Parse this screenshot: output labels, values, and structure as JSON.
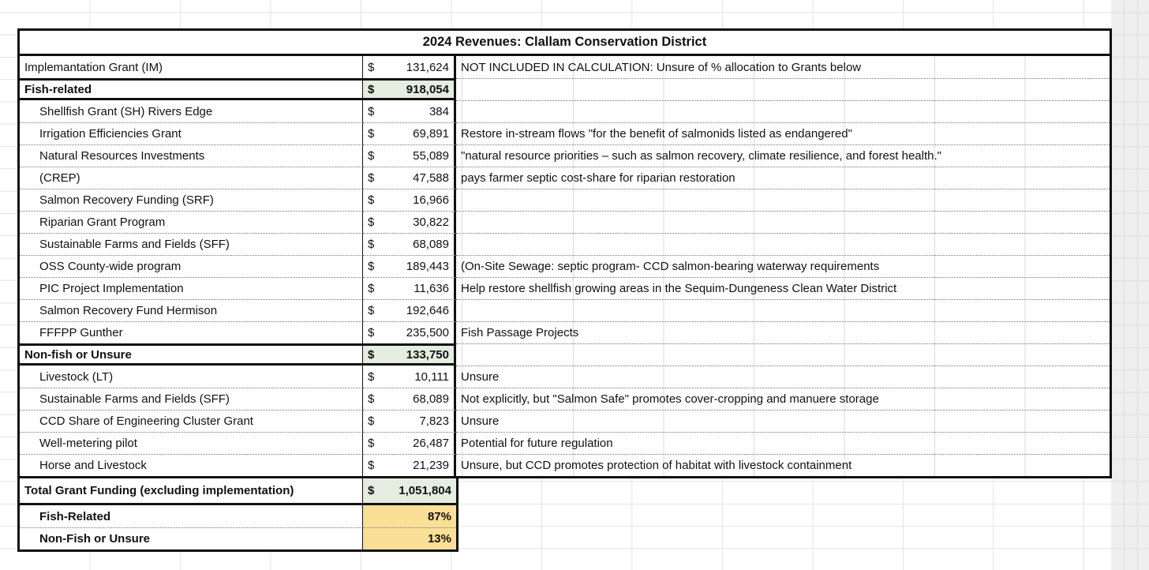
{
  "sheet": {
    "title": "2024 Revenues: Clallam Conservation District",
    "colors": {
      "section_total_fill": "#e4ede0",
      "percent_fill": "#fadf96",
      "table_border": "#111111"
    },
    "rows": [
      {
        "kind": "item",
        "indent": 0,
        "label": "Implemantation Grant (IM)",
        "cur": "$",
        "val": "131,624",
        "fill": "",
        "note": "NOT INCLUDED IN CALCULATION: Unsure of % allocation to Grants below"
      },
      {
        "kind": "section",
        "indent": 0,
        "label": "Fish-related",
        "cur": "$",
        "val": "918,054",
        "fill": "green",
        "note": ""
      },
      {
        "kind": "item",
        "indent": 1,
        "label": "Shellfish Grant (SH) Rivers Edge",
        "cur": "$",
        "val": "384",
        "fill": "",
        "note": ""
      },
      {
        "kind": "item",
        "indent": 1,
        "label": "Irrigation Efficiencies Grant",
        "cur": "$",
        "val": "69,891",
        "fill": "",
        "note": "Restore in-stream flows \"for the benefit of salmonids listed as endangered\""
      },
      {
        "kind": "item",
        "indent": 1,
        "label": "Natural Resources Investments",
        "cur": "$",
        "val": "55,089",
        "fill": "",
        "note": "\"natural resource priorities – such as salmon recovery, climate resilience, and forest health.\""
      },
      {
        "kind": "item",
        "indent": 1,
        "label": "(CREP)",
        "cur": "$",
        "val": "47,588",
        "fill": "",
        "note": "pays farmer septic cost-share for riparian restoration"
      },
      {
        "kind": "item",
        "indent": 1,
        "label": "Salmon Recovery Funding (SRF)",
        "cur": "$",
        "val": "16,966",
        "fill": "",
        "note": ""
      },
      {
        "kind": "item",
        "indent": 1,
        "label": "Riparian Grant Program",
        "cur": "$",
        "val": "30,822",
        "fill": "",
        "note": ""
      },
      {
        "kind": "item",
        "indent": 1,
        "label": "Sustainable Farms and Fields (SFF)",
        "cur": "$",
        "val": "68,089",
        "fill": "",
        "note": ""
      },
      {
        "kind": "item",
        "indent": 1,
        "label": "OSS County-wide program",
        "cur": "$",
        "val": "189,443",
        "fill": "",
        "note": "(On-Site Sewage: septic program- CCD salmon-bearing waterway requirements"
      },
      {
        "kind": "item",
        "indent": 1,
        "label": "PIC Project Implementation",
        "cur": "$",
        "val": "11,636",
        "fill": "",
        "note": "Help restore shellfish growing areas in the Sequim-Dungeness Clean Water District"
      },
      {
        "kind": "item",
        "indent": 1,
        "label": "Salmon Recovery Fund Hermison",
        "cur": "$",
        "val": "192,646",
        "fill": "",
        "note": ""
      },
      {
        "kind": "item",
        "indent": 1,
        "label": "FFFPP Gunther",
        "cur": "$",
        "val": "235,500",
        "fill": "",
        "note": "Fish Passage Projects"
      },
      {
        "kind": "section",
        "indent": 0,
        "label": "Non-fish or Unsure",
        "cur": "$",
        "val": "133,750",
        "fill": "green",
        "note": ""
      },
      {
        "kind": "item",
        "indent": 1,
        "label": "Livestock (LT)",
        "cur": "$",
        "val": "10,111",
        "fill": "",
        "note": "Unsure"
      },
      {
        "kind": "item",
        "indent": 1,
        "label": "Sustainable Farms and Fields (SFF)",
        "cur": "$",
        "val": "68,089",
        "fill": "",
        "note": "Not explicitly, but \"Salmon Safe\" promotes cover-cropping and manuere storage"
      },
      {
        "kind": "item",
        "indent": 1,
        "label": "CCD Share of Engineering Cluster Grant",
        "cur": "$",
        "val": "7,823",
        "fill": "",
        "note": "Unsure"
      },
      {
        "kind": "item",
        "indent": 1,
        "label": "Well-metering pilot",
        "cur": "$",
        "val": "26,487",
        "fill": "",
        "note": "Potential for future regulation"
      },
      {
        "kind": "item",
        "indent": 1,
        "label": "Horse and Livestock",
        "cur": "$",
        "val": "21,239",
        "fill": "",
        "note": "Unsure, but CCD promotes protection of habitat with livestock containment"
      }
    ],
    "total_row": {
      "label": "Total Grant Funding (excluding implementation)",
      "cur": "$",
      "val": "1,051,804"
    },
    "percent_rows": [
      {
        "label": "Fish-Related",
        "val": "87%"
      },
      {
        "label": "Non-Fish or Unsure",
        "val": "13%"
      }
    ]
  }
}
